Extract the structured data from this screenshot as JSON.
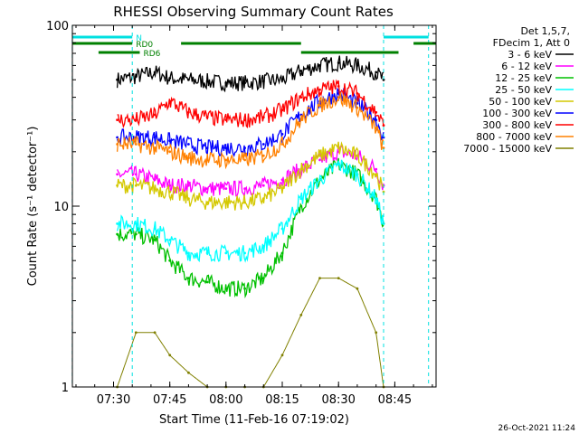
{
  "chart_data": {
    "type": "line",
    "title": "RHESSI Observing Summary Count Rates",
    "xlabel": "Start Time (11-Feb-16 07:19:02)",
    "ylabel": "Count Rate (s⁻¹ detector⁻¹)",
    "y_scale": "log",
    "ylim": [
      1,
      100
    ],
    "xlim": [
      "07:19:02",
      "08:56:00"
    ],
    "x_ticks": [
      "07:30",
      "07:45",
      "08:00",
      "08:15",
      "08:30",
      "08:45"
    ],
    "y_ticks": [
      "1",
      "10",
      "100"
    ],
    "legend_placement": "outside-right",
    "info": [
      "Det 1,5,7,",
      "FDecim 1, Att 0"
    ],
    "timestamp": "26-Oct-2021 11:24",
    "flags": [
      {
        "name": "N",
        "color": "#00e0e0",
        "intervals": [
          [
            "07:19",
            "07:35"
          ],
          [
            "08:42",
            "08:54"
          ]
        ]
      },
      {
        "name": "RD0",
        "color": "#008000",
        "intervals": [
          [
            "07:19",
            "07:35"
          ],
          [
            "07:48",
            "08:20"
          ],
          [
            "08:50",
            "08:56"
          ]
        ]
      },
      {
        "name": "RD6",
        "color": "#008000",
        "intervals": [
          [
            "07:26",
            "07:37"
          ],
          [
            "08:20",
            "08:46"
          ]
        ]
      }
    ],
    "x": [
      "07:31",
      "07:36",
      "07:41",
      "07:45",
      "07:50",
      "07:55",
      "08:00",
      "08:05",
      "08:10",
      "08:15",
      "08:20",
      "08:25",
      "08:30",
      "08:35",
      "08:40",
      "08:42"
    ],
    "series": [
      {
        "name": "3 - 6 keV",
        "color": "#000000",
        "values": [
          50,
          52,
          55,
          51,
          50,
          49,
          48,
          48,
          49,
          50,
          56,
          60,
          62,
          60,
          55,
          50
        ]
      },
      {
        "name": "6 - 12 keV",
        "color": "#ff00ff",
        "values": [
          15,
          15,
          14,
          13,
          13,
          12.5,
          12.5,
          12.5,
          13,
          14,
          16,
          18,
          20,
          19,
          16,
          13
        ]
      },
      {
        "name": "12 - 25 keV",
        "color": "#00c000",
        "values": [
          7,
          7,
          6.5,
          5,
          4,
          3.8,
          3.5,
          3.5,
          4,
          5.5,
          10,
          14,
          17,
          15,
          11,
          8
        ]
      },
      {
        "name": "25 - 50 keV",
        "color": "#00ffff",
        "values": [
          8,
          8,
          7.5,
          6.5,
          5.5,
          5.5,
          5.5,
          5.5,
          6,
          7.5,
          11,
          14,
          17,
          15,
          11,
          8
        ]
      },
      {
        "name": "50 - 100 keV",
        "color": "#d4c800",
        "values": [
          13,
          13,
          12.5,
          12,
          11,
          10.5,
          10.5,
          10.5,
          11,
          12.5,
          16,
          19,
          21,
          19,
          15,
          12
        ]
      },
      {
        "name": "100 - 300 keV",
        "color": "#0000ff",
        "values": [
          24,
          24,
          24,
          23,
          22,
          21,
          21,
          21,
          22,
          25,
          32,
          38,
          42,
          37,
          30,
          24
        ]
      },
      {
        "name": "300 - 800 keV",
        "color": "#ff0000",
        "values": [
          30,
          30,
          32,
          38,
          33,
          31,
          30,
          30,
          31,
          34,
          40,
          44,
          46,
          42,
          33,
          28
        ]
      },
      {
        "name": "800 - 7000 keV",
        "color": "#ff8000",
        "values": [
          22,
          22,
          21,
          20,
          18.5,
          18,
          18,
          18,
          19,
          22,
          30,
          36,
          40,
          35,
          27,
          21
        ]
      },
      {
        "name": "7000 - 15000 keV",
        "color": "#808000",
        "values": [
          1,
          2,
          2,
          1.5,
          1.2,
          1,
          1,
          1,
          1,
          1.5,
          2.5,
          4,
          4,
          3.5,
          2,
          1
        ]
      }
    ]
  }
}
